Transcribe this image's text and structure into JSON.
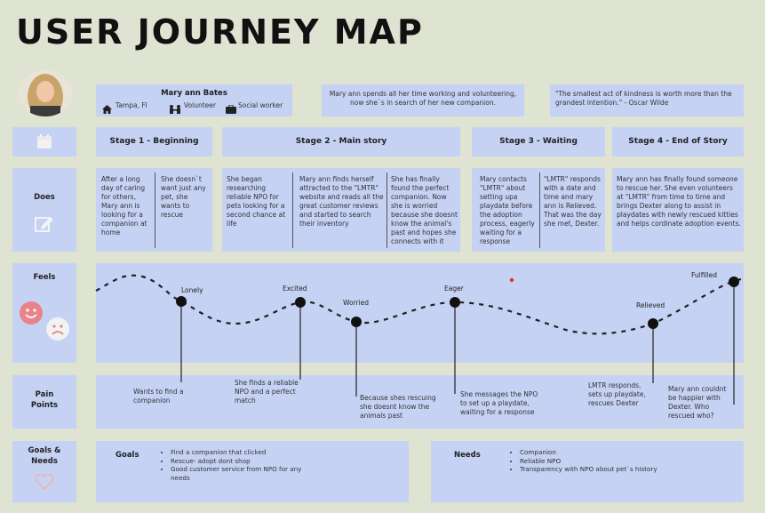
{
  "title": "USER JOURNEY MAP",
  "persona": {
    "name": "Mary ann Bates",
    "location": "Tampa, Fl",
    "role1": "Volunteer",
    "role2": "Social worker",
    "bio": "Mary ann spends all her time working and volunteering, now she`s in search of her new companion.",
    "quote": "\"The smallest act of kindness is worth more than the grandest intention.\" - Oscar Wilde"
  },
  "rows": {
    "does": "Does",
    "feels": "Feels",
    "pain": "Pain Points",
    "goals": "Goals & Needs"
  },
  "stages": [
    "Stage 1 - Beginning",
    "Stage 2 - Main story",
    "Stage 3 - Waiting",
    "Stage 4 - End of Story"
  ],
  "does": [
    "After a long day of caring for others, Mary ann is looking for a companion at home",
    "She doesn`t want just any pet, she wants to rescue",
    "She began researching reliable NPO for pets looking for a second chance at life",
    "Mary ann finds herself attracted to the \"LMTR\" website and reads all the great customer reviews and started to search their inventory",
    "She has finally found the perfect companion. Now she is worried because she doesnt know the animal's past and hopes she connects with it",
    "Mary contacts \"LMTR\" about setting upa playdate before the adoption process, eagerly waiting for a response",
    "\"LMTR\" responds with a date and time and mary ann is Relieved. That was the day she met, Dexter.",
    "Mary ann has finally found someone to rescue her. She even volunteers at \"LMTR\" from time to time and brings Dexter along to assist in playdates with newly rescued  kitties and helps cordinate adoption events."
  ],
  "emotions": [
    "Lonely",
    "Excited",
    "Worried",
    "Eager",
    "Relieved",
    "Fulfilled"
  ],
  "pain_points": [
    "Wants to find a companion",
    "She finds a reliable NPO and a perfect match",
    "Because shes rescuing she doesnt know the animals past",
    "She messages the NPO to set up a playdate, waiting for a response",
    "LMTR responds, sets up playdate, rescues Dexter",
    "Mary ann couldnt be happier with Dexter. Who rescued who?"
  ],
  "goals": {
    "label": "Goals",
    "items": [
      "Find a companion that clicked",
      "Rescue- adopt dont shop",
      "Good customer service from NPO for any needs"
    ]
  },
  "needs": {
    "label": "Needs",
    "items": [
      "Companion",
      "Reliable NPO",
      "Transparency with NPO about pet`s history"
    ]
  },
  "colors": {
    "panel": "#c6d2f4",
    "background": "#dfe3d2",
    "accent": "#e86a6a"
  }
}
